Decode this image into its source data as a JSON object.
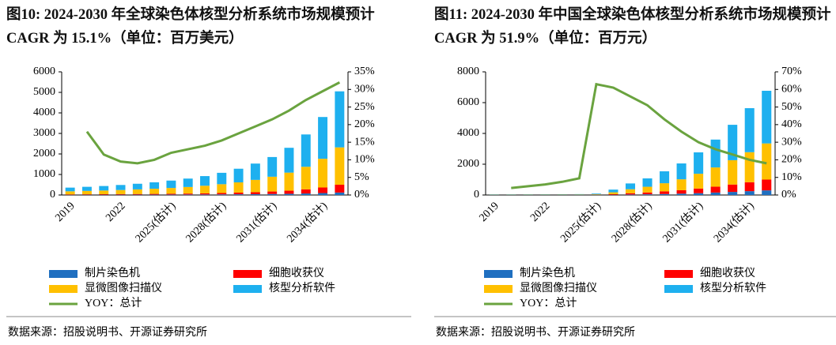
{
  "chart_data": [
    {
      "type": "bar",
      "stacked": true,
      "title": "图10:  2024-2030 年全球染色体核型分析系统市场规模预计 CAGR 为 15.1%（单位：百万美元）",
      "source": "数据来源：招股说明书、开源证券研究所",
      "categories": [
        "2019",
        null,
        null,
        "2022",
        null,
        null,
        "2025(估计)",
        null,
        null,
        "2028(估计)",
        null,
        null,
        "2031(估计)",
        null,
        null,
        "2034(估计)",
        null
      ],
      "series": [
        {
          "name": "制片染色机",
          "color": "#1f6fc0",
          "values": [
            10,
            12,
            13,
            15,
            16,
            18,
            20,
            22,
            25,
            30,
            35,
            40,
            50,
            60,
            75,
            95,
            120
          ]
        },
        {
          "name": "细胞收获仪",
          "color": "#ff0000",
          "values": [
            20,
            22,
            25,
            28,
            32,
            36,
            42,
            48,
            56,
            66,
            80,
            96,
            120,
            150,
            200,
            270,
            380
          ]
        },
        {
          "name": "显微图像扫描仪",
          "color": "#ffc000",
          "values": [
            150,
            165,
            180,
            200,
            225,
            250,
            280,
            320,
            370,
            430,
            500,
            600,
            720,
            880,
            1100,
            1400,
            1820
          ]
        },
        {
          "name": "核型分析软件",
          "color": "#1eb0ef",
          "values": [
            180,
            200,
            220,
            245,
            275,
            315,
            360,
            410,
            470,
            555,
            665,
            795,
            960,
            1210,
            1575,
            2035,
            2730
          ]
        },
        {
          "name": "YOY：总计",
          "color": "#6aa33f",
          "axis": "y2",
          "values": [
            null,
            18,
            11.5,
            9.5,
            9,
            10,
            12,
            13,
            14,
            15.5,
            17.5,
            19.5,
            21.5,
            24,
            27,
            29.5,
            32
          ]
        }
      ],
      "ylim": [
        0,
        6000
      ],
      "yticks": [
        0,
        1000,
        2000,
        3000,
        4000,
        5000,
        6000
      ],
      "y2lim": [
        0,
        35
      ],
      "y2ticks": [
        {
          "value": 0,
          "label": "0%"
        },
        {
          "value": 5,
          "label": "5%"
        },
        {
          "value": 10,
          "label": "10%"
        },
        {
          "value": 15,
          "label": "15%"
        },
        {
          "value": 20,
          "label": "20%"
        },
        {
          "value": 25,
          "label": "25%"
        },
        {
          "value": 30,
          "label": "30%"
        },
        {
          "value": 35,
          "label": "35%"
        }
      ],
      "grid": false
    },
    {
      "type": "bar",
      "stacked": true,
      "title": "图11:  2024-2030 年中国全球染色体核型分析系统市场规模预计 CAGR 为 51.9%（单位：百万元）",
      "source": "数据来源：招股说明书、开源证券研究所",
      "categories": [
        "2019",
        null,
        null,
        "2022",
        null,
        null,
        "2025(估计)",
        null,
        null,
        "2028(估计)",
        null,
        null,
        "2031(估计)",
        null,
        null,
        "2034(估计)",
        null
      ],
      "series": [
        {
          "name": "制片染色机",
          "color": "#1f6fc0",
          "values": [
            2,
            2,
            2,
            2,
            2,
            3,
            4,
            15,
            30,
            45,
            65,
            90,
            120,
            160,
            200,
            250,
            300
          ]
        },
        {
          "name": "细胞收获仪",
          "color": "#ff0000",
          "values": [
            4,
            4,
            5,
            5,
            6,
            6,
            10,
            40,
            85,
            120,
            170,
            220,
            300,
            380,
            480,
            580,
            700
          ]
        },
        {
          "name": "显微图像扫描仪",
          "color": "#ffc000",
          "values": [
            14,
            15,
            16,
            17,
            18,
            20,
            30,
            120,
            260,
            370,
            530,
            710,
            960,
            1250,
            1580,
            1950,
            2350
          ]
        },
        {
          "name": "核型分析软件",
          "color": "#1eb0ef",
          "values": [
            20,
            21,
            22,
            24,
            26,
            28,
            46,
            175,
            375,
            545,
            775,
            1030,
            1390,
            1810,
            2300,
            2860,
            3420
          ]
        },
        {
          "name": "YOY：总计",
          "color": "#6aa33f",
          "axis": "y2",
          "values": [
            null,
            4,
            5,
            6,
            7.5,
            9.5,
            63,
            61,
            56,
            51,
            43,
            36,
            30,
            26,
            23,
            20,
            18
          ]
        }
      ],
      "ylim": [
        0,
        8000
      ],
      "yticks": [
        0,
        2000,
        4000,
        6000,
        8000
      ],
      "y2lim": [
        0,
        70
      ],
      "y2ticks": [
        {
          "value": 0,
          "label": "0%"
        },
        {
          "value": 10,
          "label": "10%"
        },
        {
          "value": 20,
          "label": "20%"
        },
        {
          "value": 30,
          "label": "30%"
        },
        {
          "value": 40,
          "label": "40%"
        },
        {
          "value": 50,
          "label": "50%"
        },
        {
          "value": 60,
          "label": "60%"
        },
        {
          "value": 70,
          "label": "70%"
        }
      ],
      "grid": false
    }
  ]
}
